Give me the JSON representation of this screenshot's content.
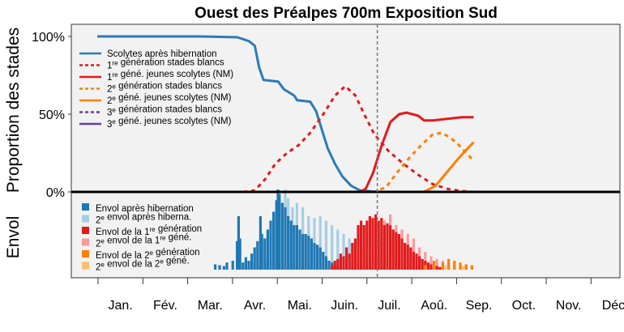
{
  "chart_data": {
    "type": "line+bar",
    "title": "Ouest des Préalpes 700m Exposition Sud",
    "ylabel_top": "Proportion des stades",
    "ylabel_bottom": "Envol",
    "y_ticks": [
      "100%",
      "50%",
      "0%"
    ],
    "y_tick_values": [
      1.0,
      0.5,
      0.0
    ],
    "months": [
      "Jan.",
      "Fév.",
      "Mar.",
      "Avr.",
      "Mai.",
      "Juin.",
      "Juil.",
      "Aoû.",
      "Sep.",
      "Oct.",
      "Nov.",
      "Déc"
    ],
    "current_day": 192,
    "line_legend": [
      {
        "label_pre": "Scolytes après hibernation",
        "sup": "",
        "label_post": "",
        "color": "#2b7bb9",
        "dash": false
      },
      {
        "label_pre": "1",
        "sup": "re",
        "label_post": " génération stades blancs",
        "color": "#e31a1c",
        "dash": true
      },
      {
        "label_pre": "1",
        "sup": "re",
        "label_post": " géné. jeunes scolytes (NM)",
        "color": "#e31a1c",
        "dash": false
      },
      {
        "label_pre": "2",
        "sup": "e",
        "label_post": " génération stades blancs",
        "color": "#ff7f00",
        "dash": true
      },
      {
        "label_pre": "2",
        "sup": "e",
        "label_post": " géné. jeunes scolytes (NM)",
        "color": "#ff7f00",
        "dash": false
      },
      {
        "label_pre": "3",
        "sup": "e",
        "label_post": " génération stades blancs",
        "color": "#6a3d9a",
        "dash": true
      },
      {
        "label_pre": "3",
        "sup": "e",
        "label_post": " géné. jeunes scolytes (NM)",
        "color": "#6a3d9a",
        "dash": false
      }
    ],
    "bar_legend": [
      {
        "label_pre": "Envol après hibernation",
        "sup": "",
        "label_post": "",
        "color": "#1f78b4"
      },
      {
        "label_pre": "2",
        "sup": "e",
        "label_post": " envol après hiberna.",
        "color": "#a6cee3"
      },
      {
        "label_pre": "Envol de la 1",
        "sup": "re",
        "label_post": " génération",
        "color": "#e31a1c"
      },
      {
        "label_pre": "2",
        "sup": "e",
        "label_post": " envol de la 1",
        "sup2": "re",
        "label_post2": " géné.",
        "color": "#fb9a99"
      },
      {
        "label_pre": "Envol de la 2",
        "sup": "e",
        "label_post": " génération",
        "color": "#ff7f00"
      },
      {
        "label_pre": "2",
        "sup": "e",
        "label_post": " envol de la 2",
        "sup2": "e",
        "label_post2": " géné.",
        "color": "#fdbf6f"
      }
    ],
    "series": [
      {
        "name": "Scolytes après hibernation",
        "color": "#2b7bb9",
        "dash": false,
        "points": [
          [
            0,
            1.0
          ],
          [
            70,
            1.0
          ],
          [
            96,
            0.995
          ],
          [
            104,
            0.97
          ],
          [
            108,
            0.94
          ],
          [
            111,
            0.8
          ],
          [
            114,
            0.72
          ],
          [
            124,
            0.71
          ],
          [
            128,
            0.66
          ],
          [
            135,
            0.62
          ],
          [
            137,
            0.59
          ],
          [
            146,
            0.58
          ],
          [
            150,
            0.52
          ],
          [
            154,
            0.4
          ],
          [
            158,
            0.28
          ],
          [
            163,
            0.18
          ],
          [
            168,
            0.1
          ],
          [
            174,
            0.04
          ],
          [
            180,
            0.01
          ],
          [
            192,
            0.0
          ]
        ]
      },
      {
        "name": "1re génération stades blancs",
        "color": "#e31a1c",
        "dash": true,
        "points": [
          [
            0,
            0.0
          ],
          [
            100,
            0.0
          ],
          [
            108,
            0.01
          ],
          [
            115,
            0.08
          ],
          [
            122,
            0.18
          ],
          [
            130,
            0.25
          ],
          [
            138,
            0.3
          ],
          [
            146,
            0.38
          ],
          [
            155,
            0.5
          ],
          [
            163,
            0.62
          ],
          [
            170,
            0.68
          ],
          [
            177,
            0.62
          ],
          [
            183,
            0.5
          ],
          [
            190,
            0.37
          ],
          [
            200,
            0.26
          ],
          [
            210,
            0.18
          ],
          [
            220,
            0.11
          ],
          [
            230,
            0.05
          ],
          [
            240,
            0.02
          ],
          [
            250,
            0.005
          ],
          [
            258,
            0.0
          ]
        ]
      },
      {
        "name": "1re géné. jeunes scolytes (NM)",
        "color": "#e31a1c",
        "dash": false,
        "points": [
          [
            0,
            0.0
          ],
          [
            180,
            0.0
          ],
          [
            184,
            0.02
          ],
          [
            189,
            0.12
          ],
          [
            195,
            0.3
          ],
          [
            201,
            0.45
          ],
          [
            207,
            0.5
          ],
          [
            212,
            0.51
          ],
          [
            216,
            0.5
          ],
          [
            220,
            0.49
          ],
          [
            224,
            0.46
          ],
          [
            230,
            0.46
          ],
          [
            240,
            0.47
          ],
          [
            250,
            0.48
          ],
          [
            258,
            0.48
          ]
        ]
      },
      {
        "name": "2e génération stades blancs",
        "color": "#ff7f00",
        "dash": true,
        "points": [
          [
            0,
            0.0
          ],
          [
            190,
            0.0
          ],
          [
            198,
            0.03
          ],
          [
            206,
            0.13
          ],
          [
            214,
            0.22
          ],
          [
            222,
            0.3
          ],
          [
            230,
            0.37
          ],
          [
            236,
            0.38
          ],
          [
            242,
            0.35
          ],
          [
            248,
            0.3
          ],
          [
            254,
            0.24
          ],
          [
            258,
            0.2
          ]
        ]
      },
      {
        "name": "2e géné. jeunes scolytes (NM)",
        "color": "#ff7f00",
        "dash": false,
        "points": [
          [
            0,
            0.0
          ],
          [
            224,
            0.0
          ],
          [
            232,
            0.04
          ],
          [
            240,
            0.13
          ],
          [
            248,
            0.22
          ],
          [
            254,
            0.28
          ],
          [
            258,
            0.32
          ]
        ]
      },
      {
        "name": "3e génération stades blancs",
        "color": "#6a3d9a",
        "dash": true,
        "points": [
          [
            0,
            0.0
          ],
          [
            258,
            0.0
          ]
        ]
      },
      {
        "name": "3e géné. jeunes scolytes (NM)",
        "color": "#6a3d9a",
        "dash": false,
        "points": [
          [
            0,
            0.0
          ],
          [
            258,
            0.0
          ]
        ]
      }
    ],
    "bars_hibernation": [
      [
        80,
        0.06
      ],
      [
        83,
        0.05
      ],
      [
        86,
        0.04
      ],
      [
        88,
        0.08
      ],
      [
        92,
        0.1
      ],
      [
        95,
        0.32
      ],
      [
        96,
        0.6
      ],
      [
        97,
        0.35
      ],
      [
        99,
        0.08
      ],
      [
        101,
        0.14
      ],
      [
        103,
        0.1
      ],
      [
        105,
        0.18
      ],
      [
        107,
        0.25
      ],
      [
        109,
        0.32
      ],
      [
        111,
        0.6
      ],
      [
        112,
        0.4
      ],
      [
        114,
        0.35
      ],
      [
        116,
        0.45
      ],
      [
        118,
        0.55
      ],
      [
        120,
        0.65
      ],
      [
        122,
        0.78
      ],
      [
        123,
        0.9
      ],
      [
        124,
        0.85
      ],
      [
        126,
        0.75
      ],
      [
        128,
        0.7
      ],
      [
        130,
        0.6
      ],
      [
        132,
        0.55
      ],
      [
        134,
        0.5
      ],
      [
        136,
        0.5
      ],
      [
        138,
        0.45
      ],
      [
        140,
        0.4
      ],
      [
        142,
        0.4
      ],
      [
        144,
        0.38
      ],
      [
        146,
        0.35
      ],
      [
        148,
        0.3
      ],
      [
        150,
        0.28
      ],
      [
        152,
        0.25
      ],
      [
        154,
        0.2
      ],
      [
        156,
        0.15
      ],
      [
        158,
        0.1
      ],
      [
        160,
        0.08
      ],
      [
        162,
        0.05
      ],
      [
        164,
        0.03
      ]
    ],
    "bars_2e_hibernation": [
      [
        110,
        0.05
      ],
      [
        115,
        0.1
      ],
      [
        120,
        0.6
      ],
      [
        124,
        0.8
      ],
      [
        128,
        0.9
      ],
      [
        130,
        0.8
      ],
      [
        133,
        0.7
      ],
      [
        136,
        0.75
      ],
      [
        140,
        0.7
      ],
      [
        144,
        0.6
      ],
      [
        148,
        0.58
      ],
      [
        152,
        0.6
      ],
      [
        156,
        0.55
      ],
      [
        160,
        0.5
      ],
      [
        164,
        0.45
      ],
      [
        168,
        0.4
      ],
      [
        172,
        0.35
      ],
      [
        176,
        0.3
      ],
      [
        180,
        0.25
      ],
      [
        184,
        0.2
      ],
      [
        188,
        0.15
      ],
      [
        192,
        0.1
      ],
      [
        196,
        0.05
      ],
      [
        200,
        0.02
      ]
    ],
    "bars_1re": [
      [
        160,
        0.05
      ],
      [
        162,
        0.1
      ],
      [
        164,
        0.12
      ],
      [
        166,
        0.18
      ],
      [
        168,
        0.15
      ],
      [
        170,
        0.25
      ],
      [
        172,
        0.18
      ],
      [
        174,
        0.3
      ],
      [
        176,
        0.35
      ],
      [
        178,
        0.5
      ],
      [
        180,
        0.55
      ],
      [
        182,
        0.5
      ],
      [
        184,
        0.55
      ],
      [
        186,
        0.6
      ],
      [
        188,
        0.58
      ],
      [
        190,
        0.62
      ],
      [
        192,
        0.55
      ],
      [
        194,
        0.58
      ],
      [
        196,
        0.5
      ],
      [
        198,
        0.52
      ],
      [
        200,
        0.5
      ],
      [
        202,
        0.45
      ],
      [
        204,
        0.42
      ],
      [
        206,
        0.4
      ],
      [
        208,
        0.35
      ],
      [
        210,
        0.3
      ],
      [
        212,
        0.28
      ],
      [
        214,
        0.25
      ],
      [
        216,
        0.2
      ],
      [
        218,
        0.18
      ],
      [
        220,
        0.15
      ],
      [
        222,
        0.12
      ],
      [
        224,
        0.1
      ],
      [
        226,
        0.08
      ],
      [
        228,
        0.06
      ],
      [
        230,
        0.05
      ],
      [
        232,
        0.04
      ],
      [
        234,
        0.03
      ]
    ],
    "bars_2e_1re": [
      [
        196,
        0.55
      ],
      [
        200,
        0.62
      ],
      [
        204,
        0.5
      ],
      [
        208,
        0.45
      ],
      [
        212,
        0.4
      ],
      [
        216,
        0.35
      ],
      [
        220,
        0.25
      ],
      [
        224,
        0.2
      ],
      [
        228,
        0.15
      ],
      [
        232,
        0.12
      ],
      [
        236,
        0.1
      ],
      [
        240,
        0.08
      ],
      [
        244,
        0.06
      ],
      [
        248,
        0.05
      ],
      [
        252,
        0.04
      ],
      [
        256,
        0.03
      ]
    ],
    "bars_2e_gen": [
      [
        224,
        0.05
      ],
      [
        230,
        0.1
      ],
      [
        236,
        0.08
      ],
      [
        240,
        0.12
      ],
      [
        244,
        0.1
      ],
      [
        248,
        0.08
      ],
      [
        252,
        0.06
      ],
      [
        256,
        0.05
      ]
    ],
    "bars_2e_2e": [
      [
        238,
        0.05
      ],
      [
        244,
        0.06
      ],
      [
        250,
        0.04
      ],
      [
        256,
        0.03
      ]
    ]
  }
}
